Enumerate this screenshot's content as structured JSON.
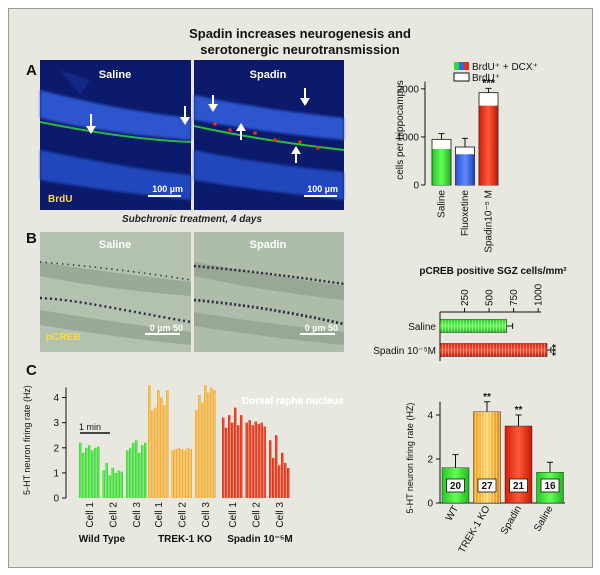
{
  "title_line1": "Spadin increases neurogenesis and",
  "title_line2": "serotonergic neurotransmission",
  "colors": {
    "green": "#33dd33",
    "blue": "#3366ee",
    "red": "#ee2a12",
    "orange": "#ffaa1e",
    "micro_bg": "#0b1a6b",
    "ish_bg": "#a9bba9"
  },
  "panel_a": {
    "letter": "A",
    "images": [
      {
        "label": "Saline",
        "scale": "100 µm",
        "marker": "BrdU"
      },
      {
        "label": "Spadin",
        "scale": "100 µm",
        "marker": ""
      }
    ],
    "caption": "Subchronic treatment, 4 days"
  },
  "panel_b": {
    "letter": "B",
    "images": [
      {
        "label": "Saline",
        "scale": "0 µm 50",
        "marker": "pCREB"
      },
      {
        "label": "Spadin",
        "scale": "0 µm 50",
        "marker": ""
      }
    ]
  },
  "panel_c": {
    "letter": "C",
    "trace_label": "Dorsal raphe nucleus",
    "scale_label": "1 min",
    "groups": [
      "Wild Type",
      "TREK-1 KO",
      "Spadin 10⁻⁵M"
    ]
  },
  "chart_data": [
    {
      "id": "neurogenesis_bar",
      "type": "bar",
      "ylabel": "cells per hippocampus",
      "ylim": [
        0,
        2600
      ],
      "yticks": [
        0,
        1000,
        2000
      ],
      "categories": [
        "Saline",
        "Fluoxetine",
        "Spadin10⁻⁵ M"
      ],
      "series": [
        {
          "name": "BrdU⁺ + DCX⁺",
          "values": [
            750,
            640,
            1650
          ]
        },
        {
          "name": "BrdU⁺",
          "values": [
            950,
            790,
            1920
          ]
        }
      ],
      "errors": [
        120,
        180,
        90
      ],
      "annotations": [
        "",
        "",
        "***"
      ],
      "legend": [
        "BrdU⁺ + DCX⁺",
        "BrdU⁺"
      ]
    },
    {
      "id": "pcreb_hbar",
      "type": "bar",
      "orientation": "horizontal",
      "title": "pCREB positive SGZ cells/mm²",
      "xlim": [
        0,
        1100
      ],
      "xticks": [
        250,
        500,
        750,
        1000
      ],
      "categories": [
        "Saline",
        "Spadin 10⁻⁵M"
      ],
      "values": [
        680,
        1090
      ],
      "errors": [
        60,
        40
      ],
      "annotations": [
        "",
        "***"
      ]
    },
    {
      "id": "firing_traces",
      "type": "bar",
      "ylabel": "5-HT neuron firing rate (Hz)",
      "ylim": [
        0,
        4.5
      ],
      "yticks": [
        0,
        1,
        2,
        3,
        4
      ],
      "categories": [
        "Cell 1",
        "Cell 2",
        "Cell 3",
        "Cell 1",
        "Cell 2",
        "Cell 3",
        "Cell 1",
        "Cell 2",
        "Cell 3"
      ],
      "group_labels": [
        "Wild Type",
        "TREK-1 KO",
        "Spadin 10⁻⁵M"
      ],
      "series": [
        {
          "name": "Wild Type",
          "cells": [
            [
              2.2,
              1.8,
              2.0,
              2.1,
              1.9,
              2.0,
              2.05
            ],
            [
              1.1,
              1.4,
              0.9,
              1.2,
              1.0,
              1.1,
              1.05
            ],
            [
              1.9,
              2.0,
              2.2,
              2.3,
              1.8,
              2.1,
              2.2
            ]
          ]
        },
        {
          "name": "TREK-1 KO",
          "cells": [
            [
              4.5,
              3.5,
              3.6,
              4.3,
              4.0,
              3.7,
              4.3
            ],
            [
              1.9,
              1.95,
              2.0,
              1.95,
              1.9,
              2.0,
              1.95
            ],
            [
              3.5,
              4.1,
              3.8,
              4.5,
              4.2,
              4.4,
              4.3
            ]
          ]
        },
        {
          "name": "Spadin 10⁻⁵M",
          "cells": [
            [
              3.2,
              2.8,
              3.3,
              3.0,
              3.6,
              2.9,
              3.3
            ],
            [
              3.0,
              3.1,
              2.9,
              3.05,
              2.95,
              3.0,
              2.85
            ],
            [
              2.3,
              1.6,
              2.5,
              1.3,
              1.8,
              1.4,
              1.2
            ]
          ]
        }
      ]
    },
    {
      "id": "firing_summary",
      "type": "bar",
      "ylabel": "5-HT neuron firing rate (HZ)",
      "ylim": [
        0,
        5
      ],
      "yticks": [
        0,
        2,
        4
      ],
      "categories": [
        "WT",
        "TREK-1 KO",
        "Spadin",
        "Saline"
      ],
      "values": [
        1.6,
        4.15,
        3.5,
        1.4
      ],
      "errors": [
        0.6,
        0.45,
        0.5,
        0.45
      ],
      "n": [
        "20",
        "27",
        "21",
        "16"
      ],
      "annotations": [
        "",
        "**",
        "**",
        ""
      ]
    }
  ]
}
